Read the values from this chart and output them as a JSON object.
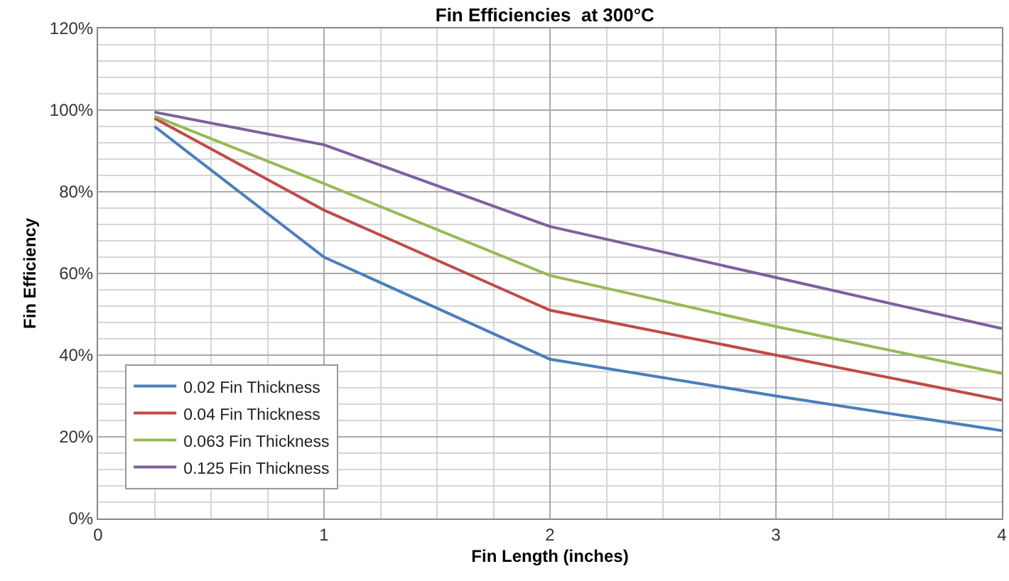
{
  "chart_data": {
    "type": "line",
    "title": "Fin Efficiencies  at 300°C",
    "xlabel": "Fin Length (inches)",
    "ylabel": "Fin Efficiency",
    "x": [
      0.25,
      1,
      2,
      3,
      4
    ],
    "series": [
      {
        "name": "0.02 Fin Thickness",
        "color": "#4a7ebb",
        "values": [
          96,
          64,
          39,
          30,
          21.5
        ]
      },
      {
        "name": "0.04 Fin Thickness",
        "color": "#be4b48",
        "values": [
          98,
          75.5,
          51,
          40,
          29
        ]
      },
      {
        "name": "0.063 Fin Thickness",
        "color": "#98b954",
        "values": [
          98.5,
          82,
          59.5,
          47,
          35.5
        ]
      },
      {
        "name": "0.125 Fin Thickness",
        "color": "#7d60a0",
        "values": [
          99.5,
          91.5,
          71.5,
          59,
          46.5
        ]
      }
    ],
    "xlim": [
      0,
      4
    ],
    "xticks": [
      0,
      1,
      2,
      3,
      4
    ],
    "ylim": [
      0,
      120
    ],
    "yticks": [
      {
        "value": 0,
        "label": "0%"
      },
      {
        "value": 20,
        "label": "20%"
      },
      {
        "value": 40,
        "label": "40%"
      },
      {
        "value": 60,
        "label": "60%"
      },
      {
        "value": 80,
        "label": "80%"
      },
      {
        "value": 100,
        "label": "100%"
      },
      {
        "value": 120,
        "label": "120%"
      }
    ],
    "grid": true,
    "legend": "bottom left",
    "marker": "none",
    "line_style": "solid"
  }
}
